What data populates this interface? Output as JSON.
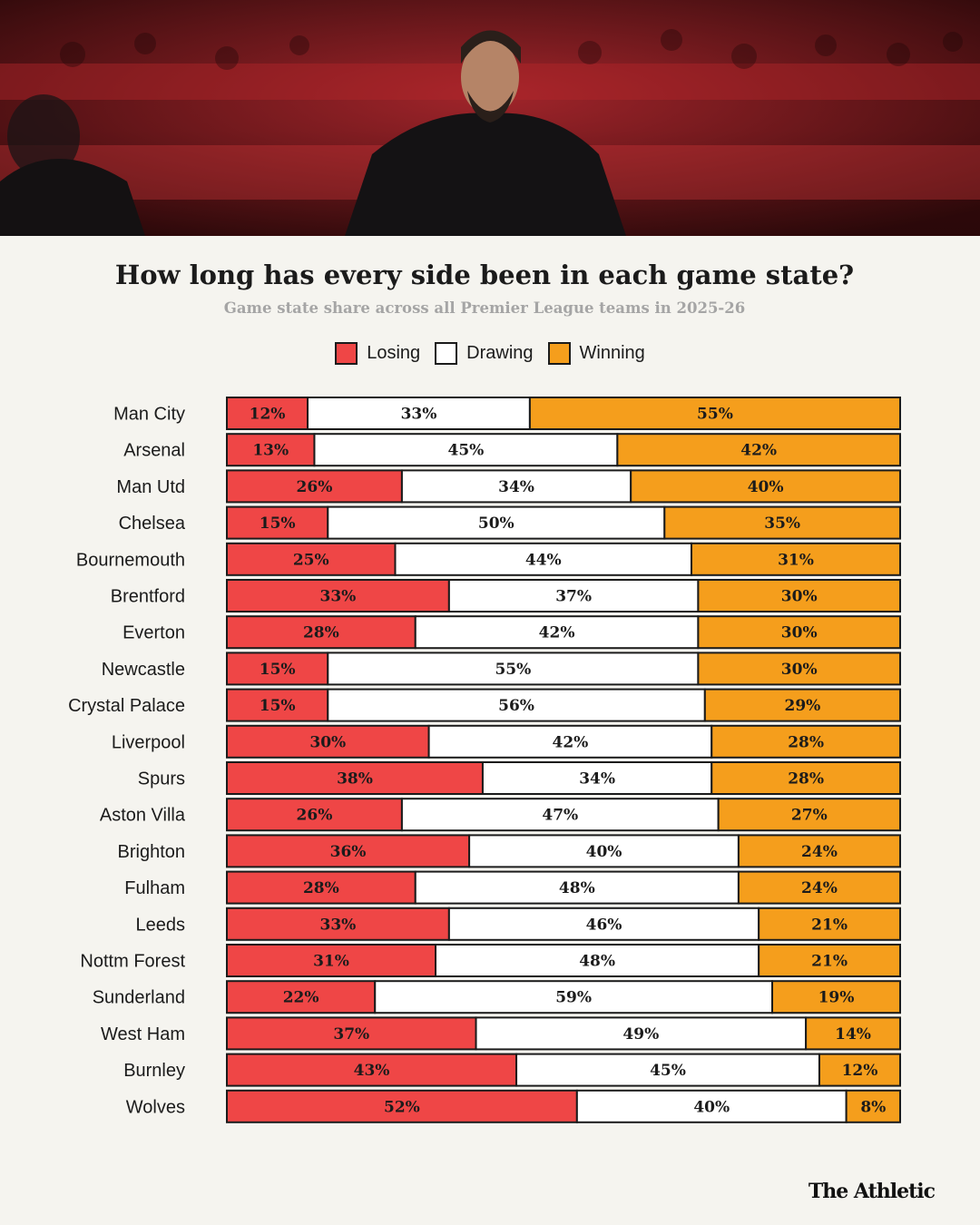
{
  "chart_data": {
    "type": "bar",
    "orientation": "horizontal",
    "stacked": true,
    "normalized": true,
    "title": "How long has every side been in each game state?",
    "subtitle": "Game state share across all Premier League teams in 2025-26",
    "legend_position": "top",
    "categories": [
      "Man City",
      "Arsenal",
      "Man Utd",
      "Chelsea",
      "Bournemouth",
      "Brentford",
      "Everton",
      "Newcastle",
      "Crystal Palace",
      "Liverpool",
      "Spurs",
      "Aston Villa",
      "Brighton",
      "Fulham",
      "Leeds",
      "Nottm Forest",
      "Sunderland",
      "West Ham",
      "Burnley",
      "Wolves"
    ],
    "series": [
      {
        "name": "Losing",
        "color": "#ef4646",
        "values": [
          12,
          13,
          26,
          15,
          25,
          33,
          28,
          15,
          15,
          30,
          38,
          26,
          36,
          28,
          33,
          31,
          22,
          37,
          43,
          52
        ]
      },
      {
        "name": "Drawing",
        "color": "#ffffff",
        "values": [
          33,
          45,
          34,
          50,
          44,
          37,
          42,
          55,
          56,
          42,
          34,
          47,
          40,
          48,
          46,
          48,
          59,
          49,
          45,
          40
        ]
      },
      {
        "name": "Winning",
        "color": "#f59e1c",
        "values": [
          55,
          42,
          40,
          35,
          31,
          30,
          30,
          30,
          29,
          28,
          28,
          27,
          24,
          24,
          21,
          21,
          19,
          14,
          12,
          8
        ]
      }
    ],
    "value_suffix": "%"
  },
  "branding": "The Athletic",
  "colors": {
    "background": "#f5f4ef",
    "border": "#1b1b1b",
    "text": "#1b1b1b"
  }
}
